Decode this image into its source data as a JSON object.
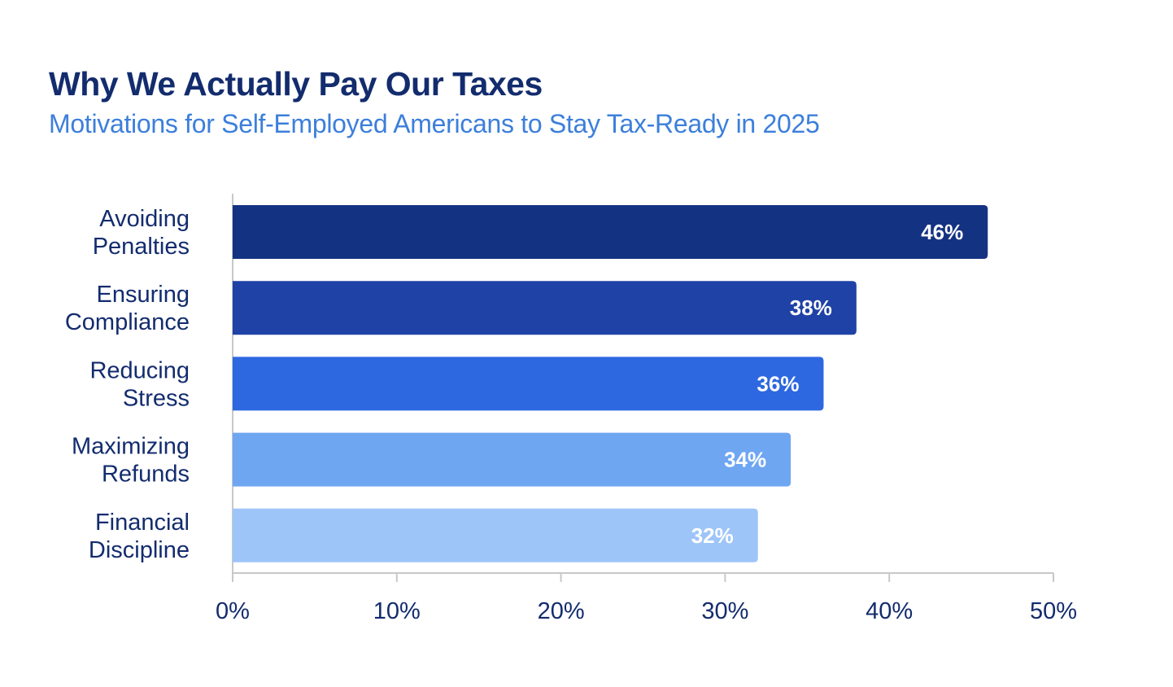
{
  "chart_data": {
    "type": "bar",
    "orientation": "horizontal",
    "title": "Why We Actually Pay Our Taxes",
    "subtitle": "Motivations for Self-Employed Americans to Stay Tax-Ready in 2025",
    "xlabel": "",
    "ylabel": "",
    "categories": [
      [
        "Avoiding",
        "Penalties"
      ],
      [
        "Ensuring",
        "Compliance"
      ],
      [
        "Reducing",
        "Stress"
      ],
      [
        "Maximizing",
        "Refunds"
      ],
      [
        "Financial",
        "Discipline"
      ]
    ],
    "values": [
      46,
      38,
      36,
      34,
      32
    ],
    "value_labels": [
      "46%",
      "38%",
      "36%",
      "34%",
      "32%"
    ],
    "bar_colors": [
      "#143282",
      "#1f42a6",
      "#2d68e0",
      "#6fa6f2",
      "#9ec5f8"
    ],
    "xlim": [
      0,
      50
    ],
    "xticks": [
      0,
      10,
      20,
      30,
      40,
      50
    ],
    "xtick_labels": [
      "0%",
      "10%",
      "20%",
      "30%",
      "40%",
      "50%"
    ],
    "grid": false,
    "legend": "none"
  }
}
